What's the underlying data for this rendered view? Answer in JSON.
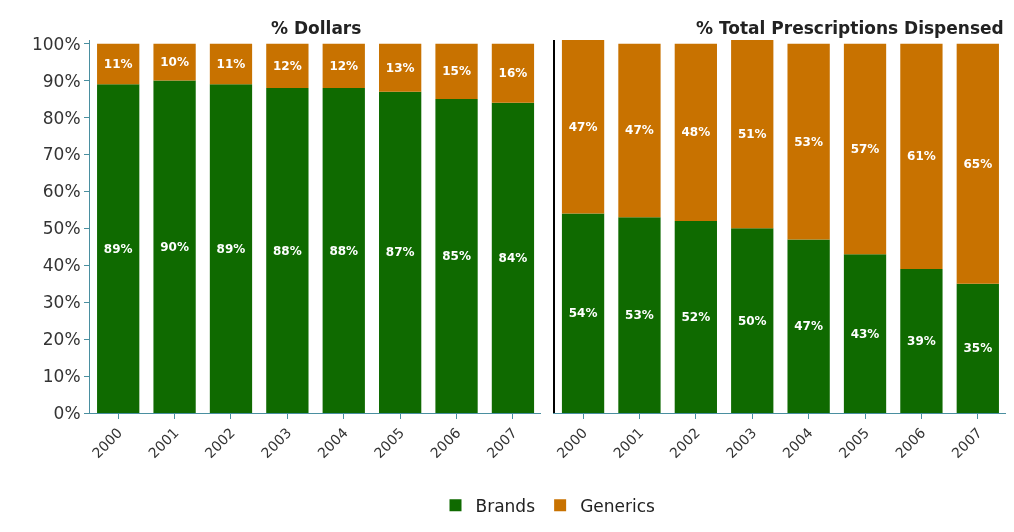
{
  "chart_data": [
    {
      "type": "bar",
      "title": "% Dollars",
      "stacked": true,
      "categories": [
        "2000",
        "2001",
        "2002",
        "2003",
        "2004",
        "2005",
        "2006",
        "2007"
      ],
      "series": [
        {
          "name": "Brands",
          "color": "#0f6a00",
          "values": [
            89,
            90,
            89,
            88,
            88,
            87,
            85,
            84
          ],
          "value_labels": [
            "89%",
            "90%",
            "89%",
            "88%",
            "88%",
            "87%",
            "85%",
            "84%"
          ]
        },
        {
          "name": "Generics",
          "color": "#c87200",
          "values": [
            11,
            10,
            11,
            12,
            12,
            13,
            15,
            16
          ],
          "value_labels": [
            "11%",
            "10%",
            "11%",
            "12%",
            "12%",
            "13%",
            "15%",
            "16%"
          ]
        }
      ],
      "ylim": [
        0,
        101
      ],
      "yticks": [
        {
          "value": 0,
          "label": "0%"
        },
        {
          "value": 10,
          "label": "10%"
        },
        {
          "value": 20,
          "label": "20%"
        },
        {
          "value": 30,
          "label": "30%"
        },
        {
          "value": 40,
          "label": "40%"
        },
        {
          "value": 50,
          "label": "50%"
        },
        {
          "value": 60,
          "label": "60%"
        },
        {
          "value": 70,
          "label": "70%"
        },
        {
          "value": 80,
          "label": "80%"
        },
        {
          "value": 90,
          "label": "90%"
        },
        {
          "value": 100,
          "label": "100%"
        }
      ],
      "legend": "bottom"
    },
    {
      "type": "bar",
      "title": "% Total Prescriptions Dispensed",
      "stacked": true,
      "categories": [
        "2000",
        "2001",
        "2002",
        "2003",
        "2004",
        "2005",
        "2006",
        "2007"
      ],
      "series": [
        {
          "name": "Brands",
          "color": "#0f6a00",
          "values": [
            54,
            53,
            52,
            50,
            47,
            43,
            39,
            35
          ],
          "value_labels": [
            "54%",
            "53%",
            "52%",
            "50%",
            "47%",
            "43%",
            "39%",
            "35%"
          ]
        },
        {
          "name": "Generics",
          "color": "#c87200",
          "values": [
            47,
            47,
            48,
            51,
            53,
            57,
            61,
            65
          ],
          "value_labels": [
            "47%",
            "47%",
            "48%",
            "51%",
            "53%",
            "57%",
            "61%",
            "65%"
          ]
        }
      ],
      "ylim": [
        0,
        101
      ],
      "tick_labels": "x"
    }
  ]
}
